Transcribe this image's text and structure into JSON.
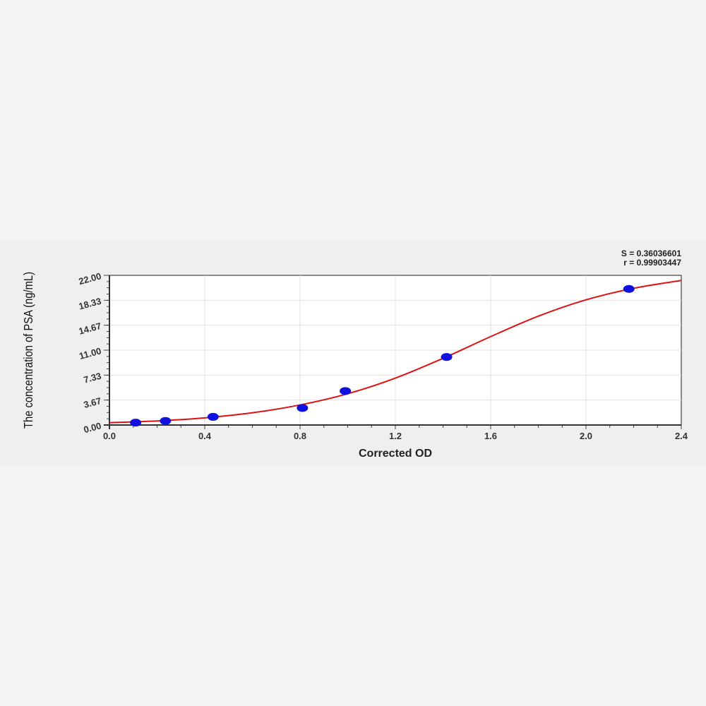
{
  "chart_data": {
    "type": "scatter",
    "xlabel": "Corrected OD",
    "ylabel": "The concentration of PSA (ng/mL)",
    "xlim": [
      0,
      2.4
    ],
    "ylim": [
      0,
      22
    ],
    "x_ticks": [
      "0.0",
      "0.4",
      "0.8",
      "1.2",
      "1.6",
      "2.0",
      "2.4"
    ],
    "y_ticks": [
      "0.00",
      "3.67",
      "7.33",
      "11.00",
      "14.67",
      "18.33",
      "22.00"
    ],
    "grid": true,
    "annotations": [
      "S = 0.36036601",
      "r = 0.99903447"
    ],
    "points": {
      "x": [
        0.11,
        0.235,
        0.435,
        0.81,
        0.99,
        1.415,
        2.18
      ],
      "y": [
        0.35,
        0.6,
        1.2,
        2.5,
        5.0,
        10.0,
        20.0
      ],
      "color": "#1010e0"
    },
    "fit_curve": {
      "x": [
        0,
        0.2,
        0.4,
        0.6,
        0.8,
        1.0,
        1.2,
        1.4,
        1.6,
        1.8,
        2.0,
        2.2,
        2.4
      ],
      "y": [
        0.35,
        0.6,
        1.05,
        1.8,
        2.95,
        4.6,
        6.9,
        9.8,
        13.0,
        16.0,
        18.4,
        20.1,
        21.25
      ],
      "color": "#dd1111"
    }
  }
}
